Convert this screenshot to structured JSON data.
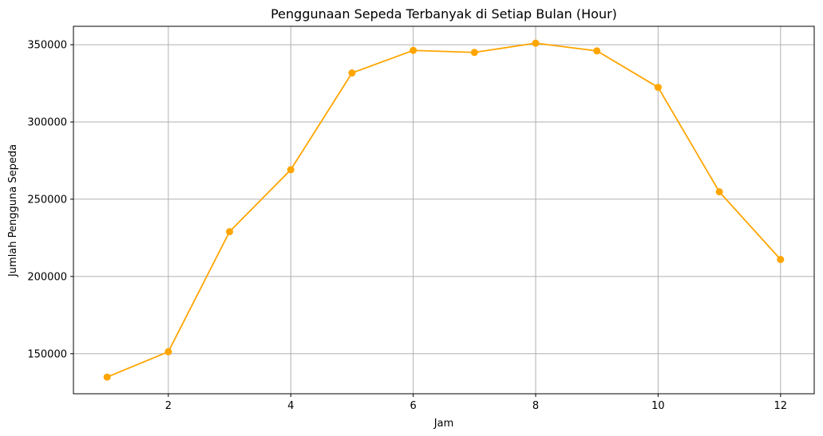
{
  "chart_data": {
    "type": "line",
    "title": "Penggunaan Sepeda Terbanyak di Setiap Bulan (Hour)",
    "xlabel": "Jam",
    "ylabel": "Jumlah Pengguna Sepeda",
    "x": [
      1,
      2,
      3,
      4,
      5,
      6,
      7,
      8,
      9,
      10,
      11,
      12
    ],
    "series": [
      {
        "values": [
          134900,
          151300,
          229000,
          269100,
          331700,
          346300,
          345000,
          351000,
          346000,
          322400,
          254800,
          211000
        ]
      }
    ],
    "xticks": [
      2,
      4,
      6,
      8,
      10,
      12
    ],
    "yticks": [
      150000,
      200000,
      250000,
      300000,
      350000
    ],
    "xlim": [
      0.45,
      12.55
    ],
    "ylim": [
      124100,
      361900
    ],
    "grid": true,
    "line_color": "#ffa500",
    "marker": "circle"
  }
}
